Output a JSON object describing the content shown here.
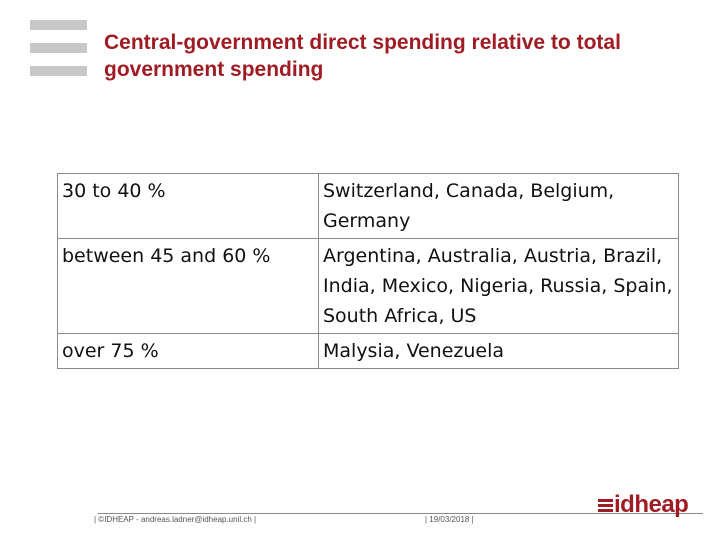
{
  "title": "Central-government direct spending relative to total government spending",
  "table": {
    "rows": [
      {
        "range": "30 to 40 %",
        "countries": "Switzerland, Canada, Belgium, Germany"
      },
      {
        "range": "between 45 and 60 %",
        "countries": "Argentina, Australia, Austria, Brazil, India, Mexico, Nigeria, Russia, Spain, South Africa, US"
      },
      {
        "range": "over 75 %",
        "countries": "Malysia, Venezuela"
      }
    ]
  },
  "footer": {
    "left": "| ©IDHEAP - andreas.ladner@idheap.unil.ch |",
    "right": "| 19/03/2018 |"
  },
  "logo": {
    "text": "idheap"
  },
  "colors": {
    "accent": "#a01c24",
    "bars": "#c8c8c8",
    "border": "#8a8a8a"
  }
}
